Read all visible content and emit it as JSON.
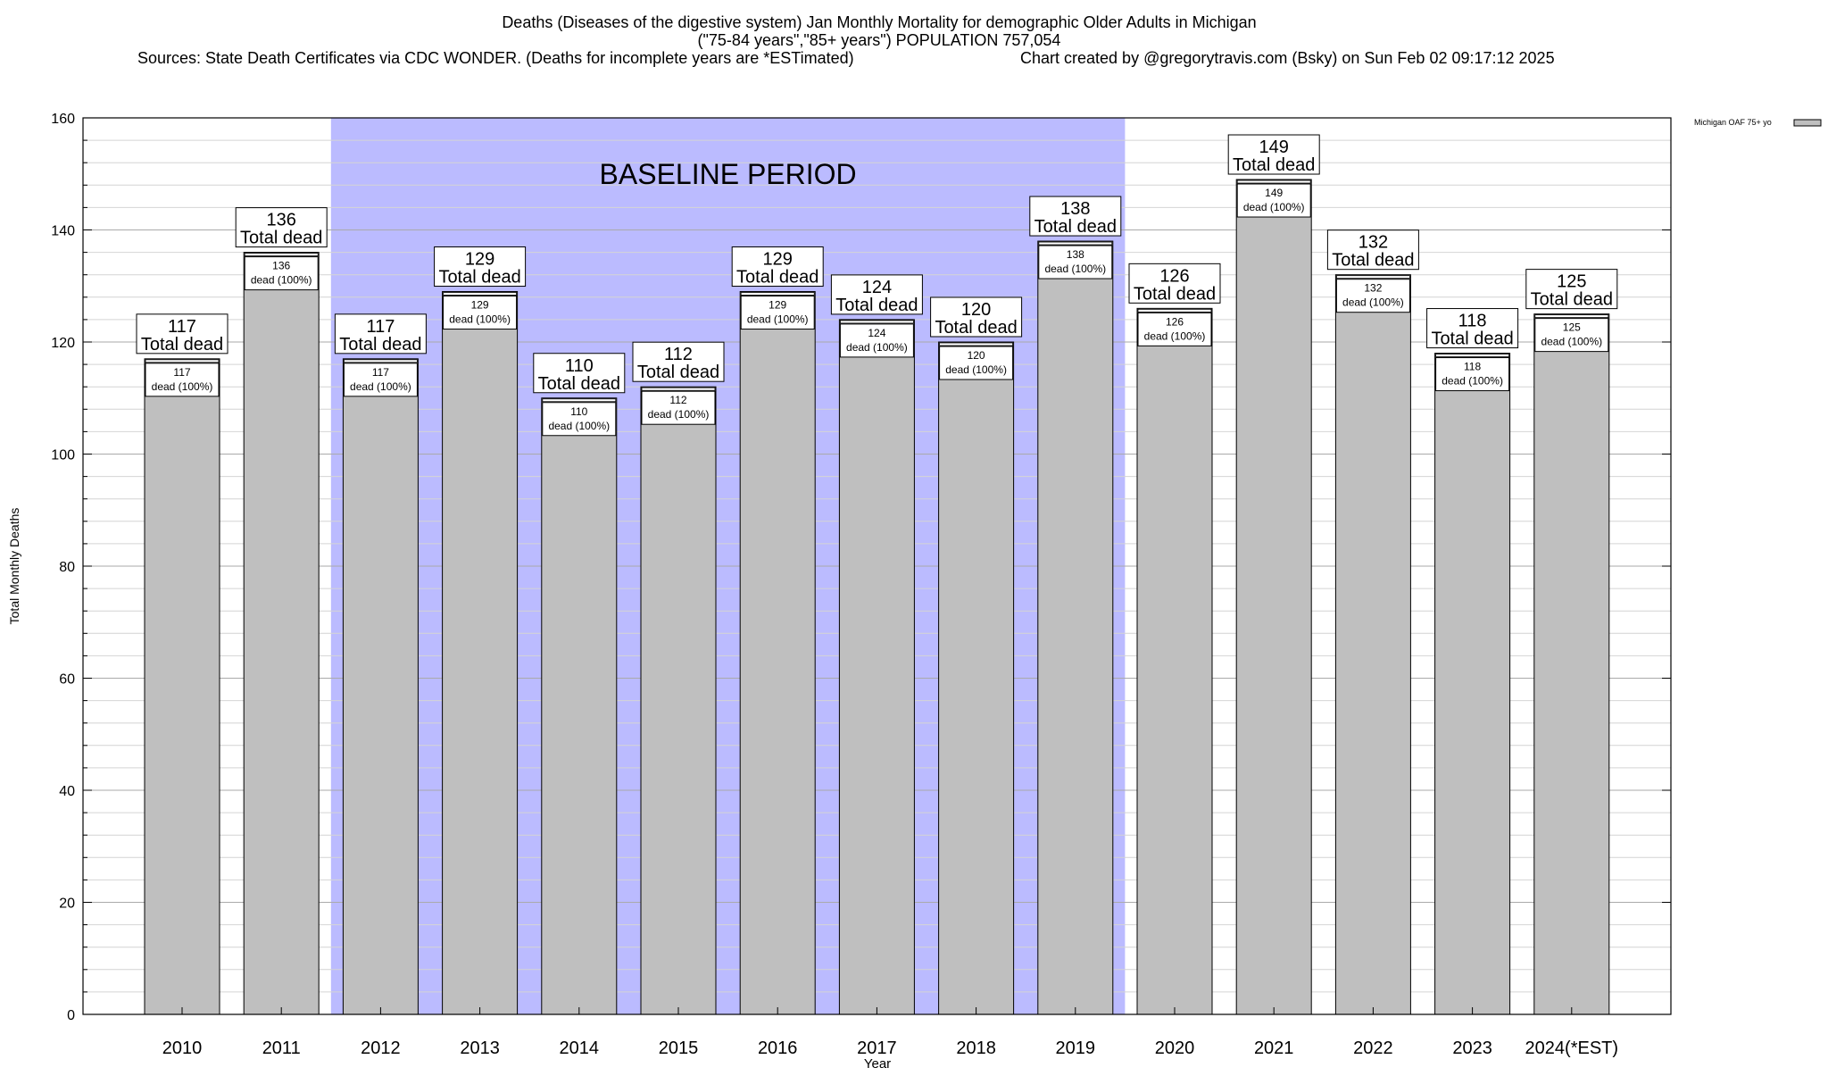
{
  "chart_data": {
    "type": "bar",
    "title_lines": [
      "Deaths (Diseases of the digestive system) Jan Monthly Mortality for demographic Older Adults in Michigan",
      "(\"75-84 years\",\"85+ years\") POPULATION 757,054"
    ],
    "sources": "Sources: State Death Certificates via CDC WONDER. (Deaths for incomplete years are *ESTimated)",
    "credit": "Chart created by @gregorytravis.com (Bsky) on Sun Feb 02 09:17:12 2025",
    "xlabel": "Year",
    "ylabel": "Total Monthly Deaths",
    "ylim": [
      0,
      160
    ],
    "y_major_ticks": [
      0,
      20,
      40,
      60,
      80,
      100,
      120,
      140,
      160
    ],
    "y_minor_step": 4,
    "categories": [
      "2010",
      "2011",
      "2012",
      "2013",
      "2014",
      "2015",
      "2016",
      "2017",
      "2018",
      "2019",
      "2020",
      "2021",
      "2022",
      "2023",
      "2024(*EST)"
    ],
    "series": [
      {
        "name": "Michigan OAF 75+ yo",
        "values": [
          117,
          136,
          117,
          129,
          110,
          112,
          129,
          124,
          120,
          138,
          126,
          149,
          132,
          118,
          125
        ],
        "color": "#bfbfbf"
      }
    ],
    "total_label_suffix": "Total dead",
    "inner_label_suffix": "dead (100%)",
    "baseline": {
      "label": "BASELINE PERIOD",
      "start": "2012",
      "end": "2019",
      "color": "#bbbbff"
    },
    "legend": {
      "position": "top-right",
      "label": "Michigan OAF 75+ yo"
    }
  }
}
